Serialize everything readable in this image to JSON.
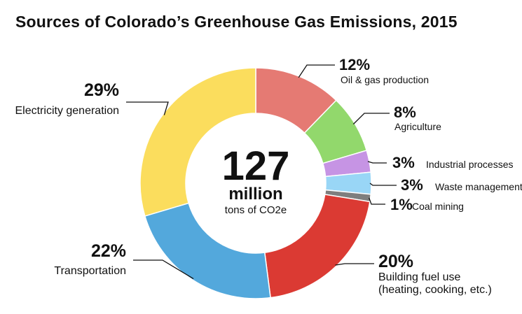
{
  "chart_data": {
    "type": "pie",
    "title": "Sources of Colorado’s Greenhouse Gas Emissions, 2015",
    "center": {
      "value": "127",
      "unit": "million",
      "caption": "tons of CO2e"
    },
    "slices": [
      {
        "label": "Oil & gas production",
        "percent": 12,
        "percent_label": "12%",
        "color": "#e57a73"
      },
      {
        "label": "Agriculture",
        "percent": 8,
        "percent_label": "8%",
        "color": "#92d86c"
      },
      {
        "label": "Industrial processes",
        "percent": 3,
        "percent_label": "3%",
        "color": "#c694e4"
      },
      {
        "label": "Waste management",
        "percent": 3,
        "percent_label": "3%",
        "color": "#99d6f6"
      },
      {
        "label": "Coal mining",
        "percent": 1,
        "percent_label": "1%",
        "color": "#7e7e7e"
      },
      {
        "label": "Building fuel use",
        "label_line2": "(heating, cooking, etc.)",
        "percent": 20,
        "percent_label": "20%",
        "color": "#db3a33"
      },
      {
        "label": "Transportation",
        "percent": 22,
        "percent_label": "22%",
        "color": "#53a8dc"
      },
      {
        "label": "Electricity generation",
        "percent": 29,
        "percent_label": "29%",
        "color": "#fbdd5d"
      }
    ]
  }
}
